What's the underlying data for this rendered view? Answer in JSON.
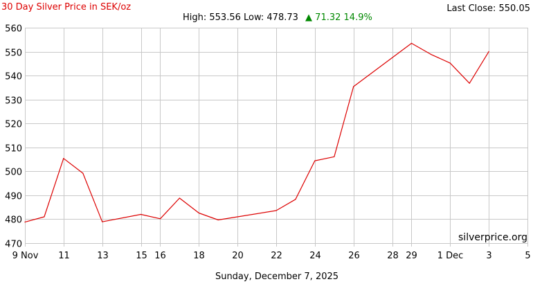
{
  "header": {
    "title": "30 Day Silver Price in SEK/oz",
    "last_close": "Last Close: 550.05",
    "stats_prefix": "High: 553.56 Low: 478.73",
    "stats_change": "▲ 71.32 14.9%",
    "watermark": "silverprice.org",
    "date_caption": "Sunday, December 7, 2025"
  },
  "colors": {
    "title": "#dd0000",
    "line": "#dd0000",
    "change_up": "#008800",
    "grid": "#c8c8c8",
    "text": "#000000"
  },
  "chart_data": {
    "type": "line",
    "title": "30 Day Silver Price in SEK/oz",
    "xlabel": "",
    "ylabel": "",
    "grid": true,
    "ylim": [
      470,
      560
    ],
    "yticks": [
      470,
      480,
      490,
      500,
      510,
      520,
      530,
      540,
      550,
      560
    ],
    "xlim": [
      "2025-11-09",
      "2025-12-05"
    ],
    "xticks": [
      {
        "date": "2025-11-09",
        "label": "9 Nov"
      },
      {
        "date": "2025-11-11",
        "label": "11"
      },
      {
        "date": "2025-11-13",
        "label": "13"
      },
      {
        "date": "2025-11-15",
        "label": "15"
      },
      {
        "date": "2025-11-16",
        "label": "16"
      },
      {
        "date": "2025-11-18",
        "label": "18"
      },
      {
        "date": "2025-11-20",
        "label": "20"
      },
      {
        "date": "2025-11-22",
        "label": "22"
      },
      {
        "date": "2025-11-24",
        "label": "24"
      },
      {
        "date": "2025-11-26",
        "label": "26"
      },
      {
        "date": "2025-11-28",
        "label": "28"
      },
      {
        "date": "2025-11-29",
        "label": "29"
      },
      {
        "date": "2025-12-01",
        "label": "1 Dec"
      },
      {
        "date": "2025-12-03",
        "label": "3"
      },
      {
        "date": "2025-12-05",
        "label": "5"
      }
    ],
    "series": [
      {
        "points": [
          {
            "x": "2025-11-09",
            "y": 478.8
          },
          {
            "x": "2025-11-10",
            "y": 481.0
          },
          {
            "x": "2025-11-11",
            "y": 505.4
          },
          {
            "x": "2025-11-12",
            "y": 499.2
          },
          {
            "x": "2025-11-13",
            "y": 478.9
          },
          {
            "x": "2025-11-15",
            "y": 482.0
          },
          {
            "x": "2025-11-16",
            "y": 480.2
          },
          {
            "x": "2025-11-17",
            "y": 488.8
          },
          {
            "x": "2025-11-18",
            "y": 482.6
          },
          {
            "x": "2025-11-19",
            "y": 479.7
          },
          {
            "x": "2025-11-22",
            "y": 483.6
          },
          {
            "x": "2025-11-23",
            "y": 488.3
          },
          {
            "x": "2025-11-24",
            "y": 504.4
          },
          {
            "x": "2025-11-25",
            "y": 506.1
          },
          {
            "x": "2025-11-26",
            "y": 535.4
          },
          {
            "x": "2025-11-29",
            "y": 553.5
          },
          {
            "x": "2025-11-30",
            "y": 548.9
          },
          {
            "x": "2025-12-01",
            "y": 545.2
          },
          {
            "x": "2025-12-02",
            "y": 536.8
          },
          {
            "x": "2025-12-03",
            "y": 550.05
          }
        ]
      }
    ]
  }
}
